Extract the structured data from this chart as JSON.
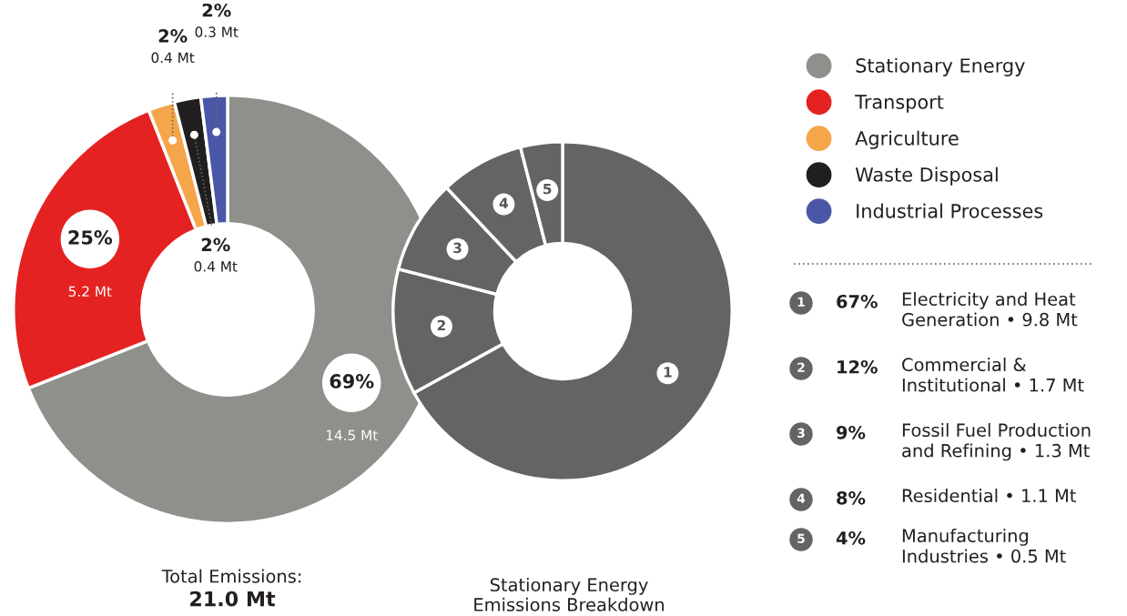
{
  "chart_data": [
    {
      "type": "donut",
      "title": "Total Emissions:",
      "subtitle": "21.0 Mt",
      "categories": [
        "Stationary Energy",
        "Transport",
        "Agriculture",
        "Waste Disposal",
        "Industrial Processes"
      ],
      "values": [
        69,
        25,
        2,
        2,
        2
      ],
      "colors": [
        "#8d908b",
        "#e52222",
        "#f5a54a",
        "#211e1f",
        "#4a57a6"
      ],
      "value_labels": [
        "69%\n14.5 Mt",
        "25%\n5.2 Mt",
        "2%\n0.4 Mt",
        "2%\n0.4 Mt",
        "2%\n0.3 Mt"
      ],
      "legend": "top right"
    },
    {
      "type": "donut",
      "title": "Stationary Energy\nEmissions Breakdown",
      "categories": [
        "1",
        "2",
        "3",
        "4",
        "5"
      ],
      "values": [
        67,
        12,
        9,
        8,
        4
      ],
      "colors": [
        "#636463",
        "#636463",
        "#636463",
        "#636463",
        "#636463"
      ],
      "annotations": [
        "67%",
        "Electricity and Heat\nGeneration • 9.8 Mt",
        "12%",
        "Commercial &\nInstitutional • 1.7 Mt",
        "9%",
        "Fossil Fuel Production\nand Refining • 1.3 Mt",
        "8%",
        "Residential • 1.1 Mt",
        "4%",
        "Manufacturing\nIndustries • 0.5 Mt"
      ]
    }
  ]
}
